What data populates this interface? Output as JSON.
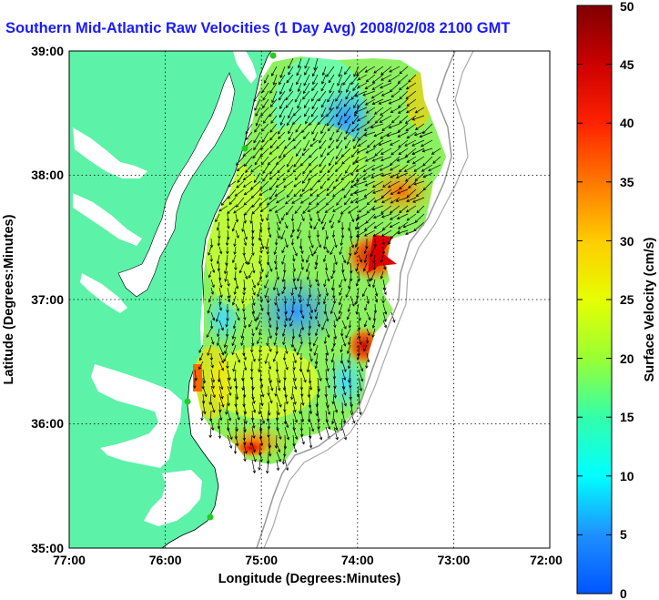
{
  "title": "Southern Mid-Atlantic Raw Velocities (1 Day Avg) 2008/02/08 2100 GMT",
  "x_axis": {
    "label": "Longitude (Degrees:Minutes)",
    "ticks": [
      "77:00",
      "76:00",
      "75:00",
      "74:00",
      "73:00",
      "72:00"
    ]
  },
  "y_axis": {
    "label": "Latitude (Degrees:Minutes)",
    "ticks": [
      "39:00",
      "38:00",
      "37:00",
      "36:00",
      "35:00"
    ]
  },
  "colorbar": {
    "label": "Surface Velocity (cm/s)",
    "ticks": [
      "0",
      "5",
      "10",
      "15",
      "20",
      "25",
      "30",
      "35",
      "40",
      "45",
      "50"
    ],
    "min": 0,
    "max": 50
  },
  "colors": {
    "title": "#1a1aff",
    "land": "#5cf2a8",
    "grid": "#000000",
    "contour": "#999999",
    "station": "#22cc22"
  },
  "map_extent": {
    "lon_range": [
      -77,
      -72
    ],
    "lat_range": [
      35,
      39
    ]
  }
}
